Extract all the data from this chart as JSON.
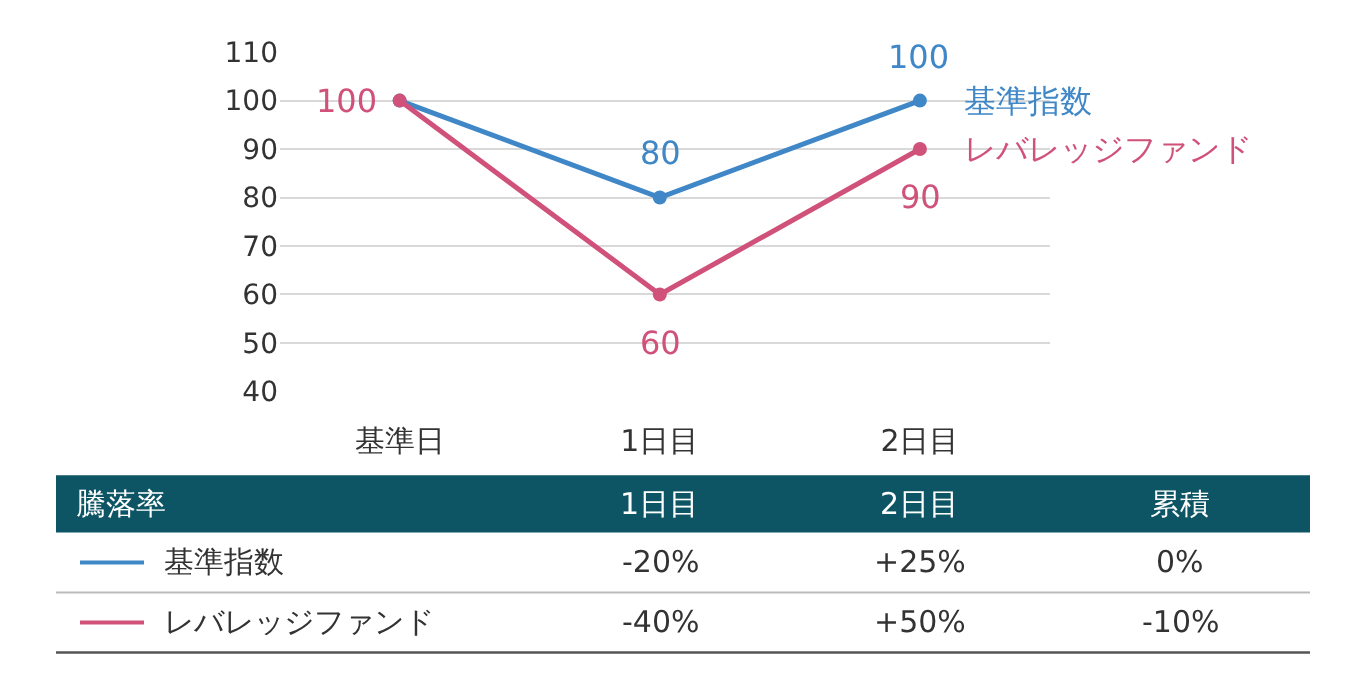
{
  "chart_data": [
    {
      "type": "line",
      "categories": [
        "基準日",
        "1日目",
        "2日目"
      ],
      "ylim": [
        40,
        110
      ],
      "yticks": [
        40,
        50,
        60,
        70,
        80,
        90,
        100,
        110
      ],
      "grid": "y",
      "legend": false,
      "marker": "circle",
      "line_style": "solid",
      "series": [
        {
          "name": "基準指数",
          "color": "#3f87c7",
          "values": [
            100,
            80,
            100
          ],
          "value_labels": [
            null,
            "80",
            "100"
          ]
        },
        {
          "name": "レバレッジファンド",
          "color": "#d0527a",
          "values": [
            100,
            60,
            90
          ],
          "value_labels": [
            "100",
            "60",
            "90"
          ]
        }
      ]
    },
    {
      "type": "other",
      "legend_title": "騰落率",
      "categories": [
        "1日目",
        "2日目",
        "累積"
      ],
      "series": [
        {
          "name": "基準指数",
          "color": "#3f87c7",
          "values": [
            -20,
            25,
            0
          ],
          "value_labels": [
            "-20%",
            "+25%",
            "0%"
          ]
        },
        {
          "name": "レバレッジファンド",
          "color": "#d0527a",
          "values": [
            -40,
            50,
            -10
          ],
          "value_labels": [
            "-40%",
            "+50%",
            "-10%"
          ]
        }
      ]
    }
  ]
}
